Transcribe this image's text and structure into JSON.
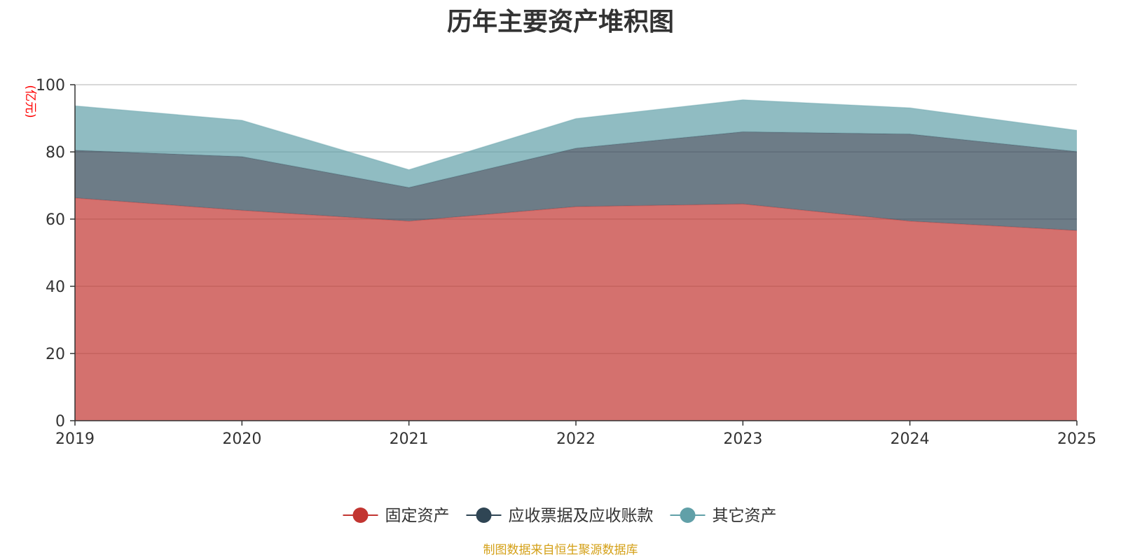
{
  "chart_data": {
    "type": "area",
    "stacked": true,
    "title": "历年主要资产堆积图",
    "y_unit": "(亿元)",
    "categories": [
      "2019",
      "2020",
      "2021",
      "2022",
      "2023",
      "2024",
      "2025"
    ],
    "ylim": [
      0,
      100
    ],
    "y_ticks": [
      0,
      20,
      40,
      60,
      80,
      100
    ],
    "grid": true,
    "legend_position": "bottom",
    "series": [
      {
        "name": "固定资产",
        "color": "#c23531",
        "values": [
          66.3,
          62.6,
          59.4,
          63.7,
          64.5,
          59.4,
          56.6
        ]
      },
      {
        "name": "应收票据及应收账款",
        "color": "#2f4554",
        "values": [
          14.2,
          16.0,
          10.0,
          17.4,
          21.5,
          25.9,
          23.5
        ]
      },
      {
        "name": "其它资产",
        "color": "#61a0a8",
        "values": [
          13.2,
          10.8,
          5.3,
          8.8,
          9.5,
          7.8,
          6.3
        ]
      }
    ]
  },
  "footer": {
    "source": "制图数据来自恒生聚源数据库"
  },
  "colors": {
    "unit": "#ff0000",
    "source": "#d4a017",
    "grid": "#cccccc",
    "axis": "#333333"
  }
}
